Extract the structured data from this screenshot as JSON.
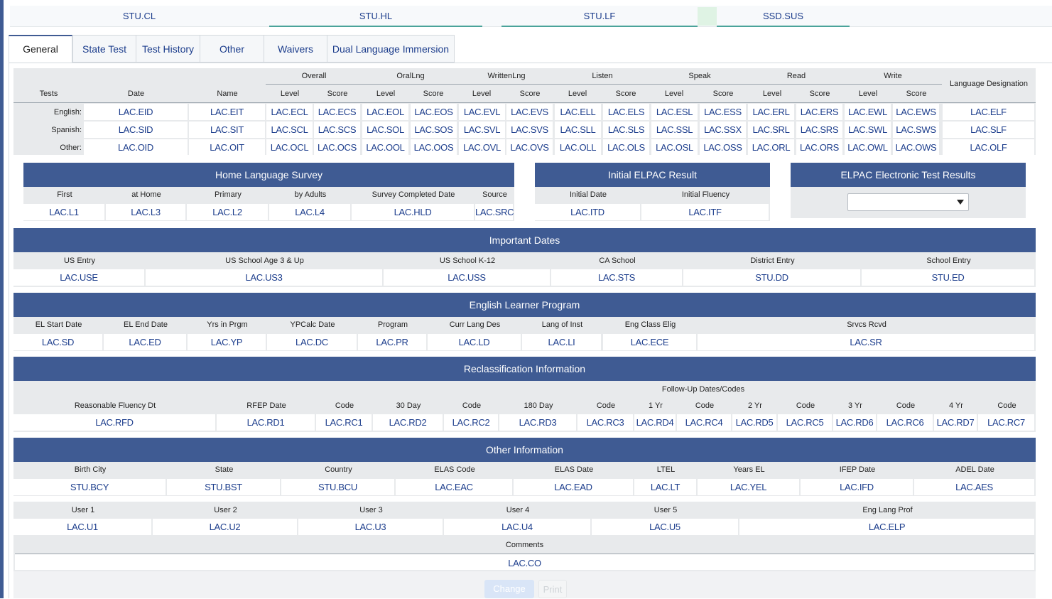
{
  "top_links": [
    "STU.CL",
    "STU.HL",
    "STU.LF",
    "SSD.SUS"
  ],
  "tabs": [
    "General",
    "State Test",
    "Test History",
    "Other",
    "Waivers",
    "Dual Language Immersion"
  ],
  "tests": {
    "group_headers": [
      "Overall",
      "OralLng",
      "WrittenLng",
      "Listen",
      "Speak",
      "Read",
      "Write"
    ],
    "col_headers": {
      "tests": "Tests",
      "date": "Date",
      "name": "Name",
      "level": "Level",
      "score": "Score",
      "lang_desig": "Language Designation"
    },
    "rows": [
      {
        "label": "English:",
        "cells": [
          "LAC.EID",
          "LAC.EIT",
          "LAC.ECL",
          "LAC.ECS",
          "LAC.EOL",
          "LAC.EOS",
          "LAC.EVL",
          "LAC.EVS",
          "LAC.ELL",
          "LAC.ELS",
          "LAC.ESL",
          "LAC.ESS",
          "LAC.ERL",
          "LAC.ERS",
          "LAC.EWL",
          "LAC.EWS",
          "LAC.ELF"
        ]
      },
      {
        "label": "Spanish:",
        "cells": [
          "LAC.SID",
          "LAC.SIT",
          "LAC.SCL",
          "LAC.SCS",
          "LAC.SOL",
          "LAC.SOS",
          "LAC.SVL",
          "LAC.SVS",
          "LAC.SLL",
          "LAC.SLS",
          "LAC.SSL",
          "LAC.SSX",
          "LAC.SRL",
          "LAC.SRS",
          "LAC.SWL",
          "LAC.SWS",
          "LAC.SLF"
        ]
      },
      {
        "label": "Other:",
        "cells": [
          "LAC.OID",
          "LAC.OIT",
          "LAC.OCL",
          "LAC.OCS",
          "LAC.OOL",
          "LAC.OOS",
          "LAC.OVL",
          "LAC.OVS",
          "LAC.OLL",
          "LAC.OLS",
          "LAC.OSL",
          "LAC.OSS",
          "LAC.ORL",
          "LAC.ORS",
          "LAC.OWL",
          "LAC.OWS",
          "LAC.OLF"
        ]
      }
    ]
  },
  "home_language_survey": {
    "title": "Home Language Survey",
    "headers": [
      "First",
      "at Home",
      "Primary",
      "by Adults",
      "Survey Completed Date",
      "Source"
    ],
    "values": [
      "LAC.L1",
      "LAC.L3",
      "LAC.L2",
      "LAC.L4",
      "LAC.HLD",
      "LAC.SRC"
    ]
  },
  "initial_elpac": {
    "title": "Initial ELPAC Result",
    "headers": [
      "Initial Date",
      "Initial Fluency"
    ],
    "values": [
      "LAC.ITD",
      "LAC.ITF"
    ]
  },
  "elpac_electronic": {
    "title": "ELPAC Electronic Test Results",
    "selected": ""
  },
  "important_dates": {
    "title": "Important Dates",
    "headers": [
      "US Entry",
      "US School Age 3 & Up",
      "US School K-12",
      "CA School",
      "District Entry",
      "School Entry"
    ],
    "values": [
      "LAC.USE",
      "LAC.US3",
      "LAC.USS",
      "LAC.STS",
      "STU.DD",
      "STU.ED"
    ]
  },
  "el_program": {
    "title": "English Learner Program",
    "headers": [
      "EL Start Date",
      "EL End Date",
      "Yrs in Prgm",
      "YPCalc Date",
      "Program",
      "Curr Lang Des",
      "Lang of Inst",
      "Eng Class Elig",
      "Srvcs Rcvd"
    ],
    "values": [
      "LAC.SD",
      "LAC.ED",
      "LAC.YP",
      "LAC.DC",
      "LAC.PR",
      "LAC.LD",
      "LAC.LI",
      "LAC.ECE",
      "LAC.SR"
    ]
  },
  "reclassification": {
    "title": "Reclassification Information",
    "followup_label": "Follow-Up Dates/Codes",
    "headers": [
      "Reasonable Fluency Dt",
      "RFEP Date",
      "Code",
      "30 Day",
      "Code",
      "180 Day",
      "Code",
      "1 Yr",
      "Code",
      "2 Yr",
      "Code",
      "3 Yr",
      "Code",
      "4 Yr",
      "Code"
    ],
    "values": [
      "LAC.RFD",
      "LAC.RD1",
      "LAC.RC1",
      "LAC.RD2",
      "LAC.RC2",
      "LAC.RD3",
      "LAC.RC3",
      "LAC.RD4",
      "LAC.RC4",
      "LAC.RD5",
      "LAC.RC5",
      "LAC.RD6",
      "LAC.RC6",
      "LAC.RD7",
      "LAC.RC7"
    ]
  },
  "other_info": {
    "title": "Other Information",
    "headers1": [
      "Birth City",
      "State",
      "Country",
      "ELAS Code",
      "ELAS Date",
      "LTEL",
      "Years EL",
      "IFEP Date",
      "ADEL Date"
    ],
    "values1": [
      "STU.BCY",
      "STU.BST",
      "STU.BCU",
      "LAC.EAC",
      "LAC.EAD",
      "LAC.LT",
      "LAC.YEL",
      "LAC.IFD",
      "LAC.AES"
    ],
    "headers2": [
      "User 1",
      "User 2",
      "User 3",
      "User 4",
      "User 5",
      "Eng Lang Prof"
    ],
    "values2": [
      "LAC.U1",
      "LAC.U2",
      "LAC.U3",
      "LAC.U4",
      "LAC.U5",
      "LAC.ELP"
    ],
    "comments_label": "Comments",
    "comments_value": "LAC.CO"
  },
  "buttons": {
    "change": "Change",
    "print": "Print"
  },
  "colors": {
    "accent": "#3f5b93",
    "link": "#1c3d8c",
    "tab_underline": "#4aa39a"
  }
}
